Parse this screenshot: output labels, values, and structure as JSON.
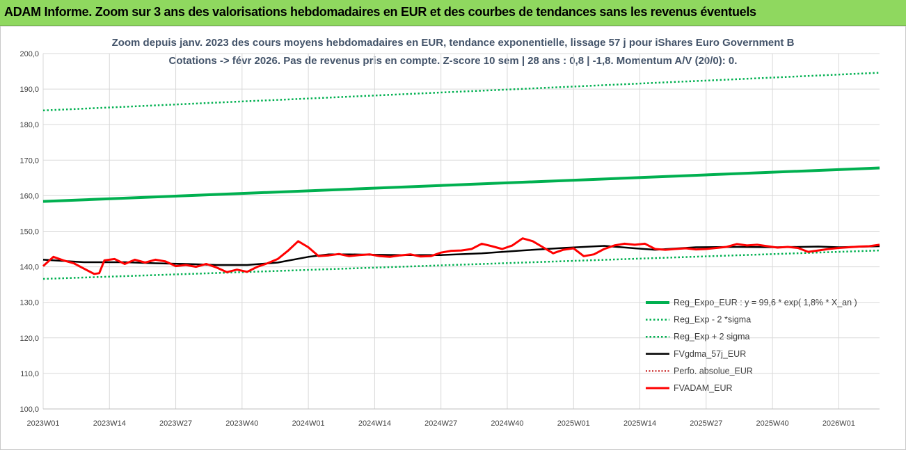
{
  "header": {
    "title": "ADAM Informe. Zoom sur 3 ans des valorisations hebdomadaires en EUR et des courbes de tendances sans les revenus éventuels"
  },
  "chart_data": {
    "type": "line",
    "title": "Zoom depuis janv. 2023 des cours moyens hebdomadaires en EUR, tendance exponentielle, lissage 57 j pour iShares Euro Government B",
    "subtitle": "Cotations -> févr 2026. Pas de revenus pris en compte. Z-score 10 sem | 28 ans : 0,8 | -1,8. Momentum A/V (20/0): 0.",
    "xlabel": "",
    "ylabel": "",
    "ylim": [
      100,
      200
    ],
    "yticks": [
      "100,0",
      "110,0",
      "120,0",
      "130,0",
      "140,0",
      "150,0",
      "160,0",
      "170,0",
      "180,0",
      "190,0",
      "200,0"
    ],
    "xticks": [
      "2023W01",
      "2023W14",
      "2023W27",
      "2023W40",
      "2024W01",
      "2024W14",
      "2024W27",
      "2024W40",
      "2025W01",
      "2025W14",
      "2025W27",
      "2025W40",
      "2026W01"
    ],
    "x_weeks": 165,
    "grid": true,
    "legend_position": "bottom-right",
    "series": [
      {
        "name": "Reg_Expo_EUR : y = 99,6 * exp( 1,8% *  X_an )",
        "color": "#00b050",
        "style": "solid-thick",
        "x": [
          0,
          164
        ],
        "values": [
          158.4,
          167.8
        ]
      },
      {
        "name": "Reg_Exp - 2 *sigma",
        "color": "#00b050",
        "style": "dotted",
        "x": [
          0,
          164
        ],
        "values": [
          136.6,
          144.6
        ]
      },
      {
        "name": "Reg_Exp + 2 sigma",
        "color": "#00b050",
        "style": "dotted",
        "x": [
          0,
          164
        ],
        "values": [
          184.0,
          194.6
        ]
      },
      {
        "name": "FVgdma_57j_EUR",
        "color": "#000000",
        "style": "solid",
        "x": [
          0,
          8,
          16,
          22,
          28,
          34,
          40,
          46,
          52,
          56,
          60,
          64,
          70,
          78,
          86,
          94,
          102,
          110,
          116,
          120,
          128,
          136,
          144,
          152,
          156,
          164
        ],
        "values": [
          142.0,
          141.3,
          141.3,
          141.0,
          140.8,
          140.5,
          140.5,
          141.2,
          142.8,
          143.5,
          143.5,
          143.4,
          143.3,
          143.3,
          143.8,
          144.6,
          145.3,
          145.9,
          145.2,
          144.8,
          145.5,
          145.6,
          145.5,
          145.7,
          145.5,
          145.8
        ]
      },
      {
        "name": "Perfo. absolue_EUR",
        "color": "#c00000",
        "style": "dotted-thin",
        "x": [],
        "values": []
      },
      {
        "name": "FVADAM_EUR",
        "color": "#ff0000",
        "style": "solid-thick",
        "x": [
          0,
          2,
          4,
          6,
          8,
          10,
          11,
          12,
          14,
          16,
          18,
          20,
          22,
          24,
          26,
          28,
          30,
          32,
          34,
          36,
          38,
          40,
          42,
          44,
          46,
          48,
          50,
          52,
          54,
          56,
          58,
          60,
          62,
          64,
          66,
          68,
          70,
          72,
          74,
          76,
          78,
          80,
          82,
          84,
          86,
          88,
          90,
          92,
          94,
          96,
          98,
          100,
          102,
          104,
          106,
          108,
          110,
          112,
          114,
          116,
          118,
          120,
          122,
          124,
          126,
          128,
          130,
          132,
          134,
          136,
          138,
          140,
          142,
          144,
          146,
          148,
          150,
          152,
          154,
          156,
          158,
          160,
          162,
          164
        ],
        "values": [
          140.2,
          142.8,
          141.8,
          141.0,
          139.5,
          138.0,
          138.2,
          141.8,
          142.2,
          140.8,
          142.0,
          141.2,
          142.0,
          141.5,
          140.2,
          140.5,
          140.0,
          140.8,
          139.8,
          138.5,
          139.2,
          138.6,
          140.0,
          141.0,
          142.2,
          144.5,
          147.2,
          145.5,
          143.0,
          143.2,
          143.6,
          143.0,
          143.3,
          143.5,
          143.0,
          142.8,
          143.2,
          143.5,
          142.9,
          143.0,
          144.0,
          144.5,
          144.6,
          145.0,
          146.5,
          145.8,
          145.0,
          146.0,
          148.0,
          147.2,
          145.5,
          143.8,
          144.8,
          145.2,
          143.0,
          143.5,
          145.0,
          146.0,
          146.5,
          146.2,
          146.5,
          145.0,
          144.8,
          145.0,
          145.2,
          144.9,
          145.0,
          145.3,
          145.6,
          146.4,
          146.0,
          146.2,
          145.8,
          145.4,
          145.6,
          145.3,
          144.2,
          144.6,
          145.0,
          145.3,
          145.5,
          145.7,
          145.8,
          146.2
        ]
      }
    ]
  }
}
